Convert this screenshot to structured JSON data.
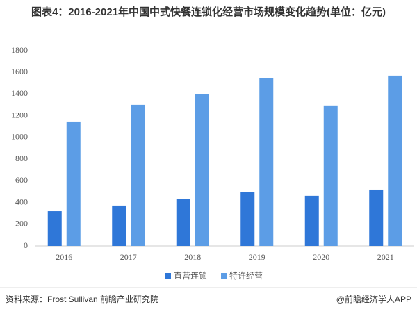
{
  "chart_data": {
    "type": "bar",
    "title": "图表4：2016-2021年中国中式快餐连锁化经营市场规模变化趋势(单位：亿元)",
    "categories": [
      "2016",
      "2017",
      "2018",
      "2019",
      "2020",
      "2021"
    ],
    "series": [
      {
        "name": "直营连锁",
        "color": "#2f77d8",
        "values": [
          320,
          372,
          430,
          494,
          462,
          519
        ]
      },
      {
        "name": "特许经营",
        "color": "#5c9de6",
        "values": [
          1147,
          1301,
          1397,
          1545,
          1295,
          1570
        ]
      }
    ],
    "ylim": [
      0,
      1800
    ],
    "yticks": [
      0,
      200,
      400,
      600,
      800,
      1000,
      1200,
      1400,
      1600,
      1800
    ],
    "grid": false,
    "legend": "bottom",
    "source": "资料来源：Frost Sullivan 前瞻产业研究院",
    "credit": "@前瞻经济学人APP"
  }
}
